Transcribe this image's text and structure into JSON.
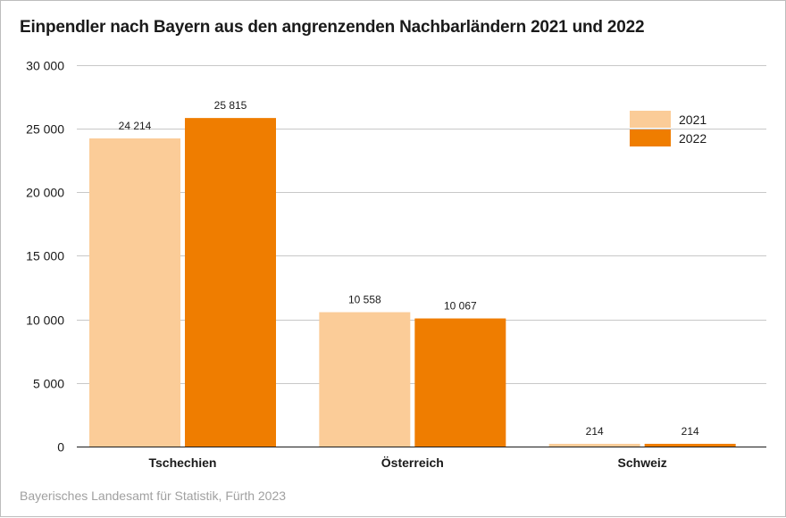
{
  "chart_data": {
    "type": "bar",
    "title": "Einpendler nach Bayern aus den angrenzenden Nachbarländern 2021 und 2022",
    "source": "Bayerisches Landesamt für Statistik, Fürth 2023",
    "categories": [
      "Tschechien",
      "Österreich",
      "Schweiz"
    ],
    "series": [
      {
        "name": "2021",
        "color": "#fbcc98",
        "values": [
          24214,
          10558,
          214
        ],
        "labels": [
          "24 214",
          "10 558",
          "214"
        ]
      },
      {
        "name": "2022",
        "color": "#ef7d00",
        "values": [
          25815,
          10067,
          214
        ],
        "labels": [
          "25 815",
          "10 067",
          "214"
        ]
      }
    ],
    "ylim": [
      0,
      30000
    ],
    "yticks": [
      0,
      5000,
      10000,
      15000,
      20000,
      25000,
      30000
    ],
    "ytick_labels": [
      "0",
      "5 000",
      "10 000",
      "15 000",
      "20 000",
      "25 000",
      "30 000"
    ],
    "xlabel": "",
    "ylabel": "",
    "grid": true,
    "legend_position": "top-right"
  }
}
